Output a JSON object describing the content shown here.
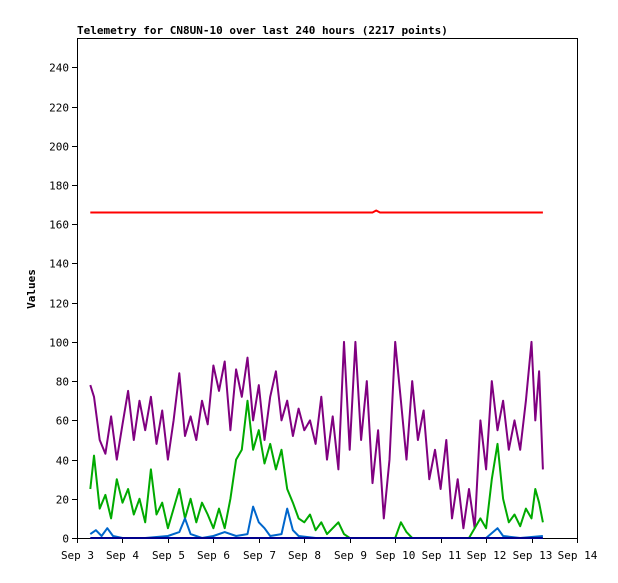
{
  "chart_data": {
    "type": "line",
    "title": "Telemetry for CN8UN-10 over last 240 hours (2217 points)",
    "xlabel": "",
    "ylabel": "Values",
    "xlim": [
      "2017-09-03",
      "2017-09-14"
    ],
    "ylim": [
      0,
      255
    ],
    "grid": false,
    "legend": "none",
    "x_ticks": [
      {
        "value": "2017-09-03",
        "label": "Sep 3"
      },
      {
        "value": "2017-09-04",
        "label": "Sep 4"
      },
      {
        "value": "2017-09-05",
        "label": "Sep 5"
      },
      {
        "value": "2017-09-06",
        "label": "Sep 6"
      },
      {
        "value": "2017-09-07",
        "label": "Sep 7"
      },
      {
        "value": "2017-09-08",
        "label": "Sep 8"
      },
      {
        "value": "2017-09-09",
        "label": "Sep 9"
      },
      {
        "value": "2017-09-10",
        "label": "Sep 10"
      },
      {
        "value": "2017-09-11",
        "label": "Sep 11"
      },
      {
        "value": "2017-09-12",
        "label": "Sep 12"
      },
      {
        "value": "2017-09-13",
        "label": "Sep 13"
      },
      {
        "value": "2017-09-14",
        "label": "Sep 14"
      }
    ],
    "y_ticks": [
      0,
      20,
      40,
      60,
      80,
      100,
      120,
      140,
      160,
      180,
      200,
      220,
      240
    ],
    "series": [
      {
        "color": "#ff0000",
        "points": [
          [
            "2017-09-03 07:00",
            166
          ],
          [
            "2017-09-06 00:00",
            166
          ],
          [
            "2017-09-08 00:00",
            166
          ],
          [
            "2017-09-09 12:00",
            166
          ],
          [
            "2017-09-09 14:00",
            167
          ],
          [
            "2017-09-09 16:00",
            166
          ],
          [
            "2017-09-11 00:00",
            166
          ],
          [
            "2017-09-13 06:00",
            166
          ]
        ]
      },
      {
        "color": "#800080",
        "points": [
          [
            "2017-09-03 07:00",
            78
          ],
          [
            "2017-09-03 09:00",
            72
          ],
          [
            "2017-09-03 12:00",
            50
          ],
          [
            "2017-09-03 15:00",
            43
          ],
          [
            "2017-09-03 18:00",
            62
          ],
          [
            "2017-09-03 21:00",
            40
          ],
          [
            "2017-09-04 00:00",
            58
          ],
          [
            "2017-09-04 03:00",
            75
          ],
          [
            "2017-09-04 06:00",
            50
          ],
          [
            "2017-09-04 09:00",
            70
          ],
          [
            "2017-09-04 12:00",
            55
          ],
          [
            "2017-09-04 15:00",
            72
          ],
          [
            "2017-09-04 18:00",
            48
          ],
          [
            "2017-09-04 21:00",
            65
          ],
          [
            "2017-09-05 00:00",
            40
          ],
          [
            "2017-09-05 03:00",
            60
          ],
          [
            "2017-09-05 06:00",
            84
          ],
          [
            "2017-09-05 09:00",
            52
          ],
          [
            "2017-09-05 12:00",
            62
          ],
          [
            "2017-09-05 15:00",
            50
          ],
          [
            "2017-09-05 18:00",
            70
          ],
          [
            "2017-09-05 21:00",
            58
          ],
          [
            "2017-09-06 00:00",
            88
          ],
          [
            "2017-09-06 03:00",
            75
          ],
          [
            "2017-09-06 06:00",
            90
          ],
          [
            "2017-09-06 09:00",
            55
          ],
          [
            "2017-09-06 12:00",
            86
          ],
          [
            "2017-09-06 15:00",
            72
          ],
          [
            "2017-09-06 18:00",
            92
          ],
          [
            "2017-09-06 21:00",
            60
          ],
          [
            "2017-09-07 00:00",
            78
          ],
          [
            "2017-09-07 03:00",
            50
          ],
          [
            "2017-09-07 06:00",
            72
          ],
          [
            "2017-09-07 09:00",
            85
          ],
          [
            "2017-09-07 12:00",
            60
          ],
          [
            "2017-09-07 15:00",
            70
          ],
          [
            "2017-09-07 18:00",
            52
          ],
          [
            "2017-09-07 21:00",
            66
          ],
          [
            "2017-09-08 00:00",
            55
          ],
          [
            "2017-09-08 03:00",
            60
          ],
          [
            "2017-09-08 06:00",
            48
          ],
          [
            "2017-09-08 09:00",
            72
          ],
          [
            "2017-09-08 12:00",
            40
          ],
          [
            "2017-09-08 15:00",
            62
          ],
          [
            "2017-09-08 18:00",
            35
          ],
          [
            "2017-09-08 21:00",
            100
          ],
          [
            "2017-09-09 00:00",
            45
          ],
          [
            "2017-09-09 03:00",
            100
          ],
          [
            "2017-09-09 06:00",
            50
          ],
          [
            "2017-09-09 09:00",
            80
          ],
          [
            "2017-09-09 12:00",
            28
          ],
          [
            "2017-09-09 15:00",
            55
          ],
          [
            "2017-09-09 18:00",
            10
          ],
          [
            "2017-09-09 21:00",
            40
          ],
          [
            "2017-09-10 00:00",
            100
          ],
          [
            "2017-09-10 03:00",
            70
          ],
          [
            "2017-09-10 06:00",
            40
          ],
          [
            "2017-09-10 09:00",
            80
          ],
          [
            "2017-09-10 12:00",
            50
          ],
          [
            "2017-09-10 15:00",
            65
          ],
          [
            "2017-09-10 18:00",
            30
          ],
          [
            "2017-09-10 21:00",
            45
          ],
          [
            "2017-09-11 00:00",
            25
          ],
          [
            "2017-09-11 03:00",
            50
          ],
          [
            "2017-09-11 06:00",
            10
          ],
          [
            "2017-09-11 09:00",
            30
          ],
          [
            "2017-09-11 12:00",
            5
          ],
          [
            "2017-09-11 15:00",
            25
          ],
          [
            "2017-09-11 18:00",
            5
          ],
          [
            "2017-09-11 21:00",
            60
          ],
          [
            "2017-09-12 00:00",
            35
          ],
          [
            "2017-09-12 03:00",
            80
          ],
          [
            "2017-09-12 06:00",
            55
          ],
          [
            "2017-09-12 09:00",
            70
          ],
          [
            "2017-09-12 12:00",
            45
          ],
          [
            "2017-09-12 15:00",
            60
          ],
          [
            "2017-09-12 18:00",
            45
          ],
          [
            "2017-09-12 21:00",
            70
          ],
          [
            "2017-09-13 00:00",
            100
          ],
          [
            "2017-09-13 02:00",
            60
          ],
          [
            "2017-09-13 04:00",
            85
          ],
          [
            "2017-09-13 06:00",
            35
          ]
        ]
      },
      {
        "color": "#00aa00",
        "points": [
          [
            "2017-09-03 07:00",
            25
          ],
          [
            "2017-09-03 09:00",
            42
          ],
          [
            "2017-09-03 12:00",
            15
          ],
          [
            "2017-09-03 15:00",
            22
          ],
          [
            "2017-09-03 18:00",
            10
          ],
          [
            "2017-09-03 21:00",
            30
          ],
          [
            "2017-09-04 00:00",
            18
          ],
          [
            "2017-09-04 03:00",
            25
          ],
          [
            "2017-09-04 06:00",
            12
          ],
          [
            "2017-09-04 09:00",
            20
          ],
          [
            "2017-09-04 12:00",
            8
          ],
          [
            "2017-09-04 15:00",
            35
          ],
          [
            "2017-09-04 18:00",
            12
          ],
          [
            "2017-09-04 21:00",
            18
          ],
          [
            "2017-09-05 00:00",
            5
          ],
          [
            "2017-09-05 03:00",
            15
          ],
          [
            "2017-09-05 06:00",
            25
          ],
          [
            "2017-09-05 09:00",
            10
          ],
          [
            "2017-09-05 12:00",
            20
          ],
          [
            "2017-09-05 15:00",
            8
          ],
          [
            "2017-09-05 18:00",
            18
          ],
          [
            "2017-09-05 21:00",
            12
          ],
          [
            "2017-09-06 00:00",
            5
          ],
          [
            "2017-09-06 03:00",
            15
          ],
          [
            "2017-09-06 06:00",
            5
          ],
          [
            "2017-09-06 09:00",
            20
          ],
          [
            "2017-09-06 12:00",
            40
          ],
          [
            "2017-09-06 15:00",
            45
          ],
          [
            "2017-09-06 18:00",
            70
          ],
          [
            "2017-09-06 21:00",
            45
          ],
          [
            "2017-09-07 00:00",
            55
          ],
          [
            "2017-09-07 03:00",
            38
          ],
          [
            "2017-09-07 06:00",
            48
          ],
          [
            "2017-09-07 09:00",
            35
          ],
          [
            "2017-09-07 12:00",
            45
          ],
          [
            "2017-09-07 15:00",
            25
          ],
          [
            "2017-09-07 18:00",
            18
          ],
          [
            "2017-09-07 21:00",
            10
          ],
          [
            "2017-09-08 00:00",
            8
          ],
          [
            "2017-09-08 03:00",
            12
          ],
          [
            "2017-09-08 06:00",
            4
          ],
          [
            "2017-09-08 09:00",
            8
          ],
          [
            "2017-09-08 12:00",
            2
          ],
          [
            "2017-09-08 15:00",
            5
          ],
          [
            "2017-09-08 18:00",
            8
          ],
          [
            "2017-09-08 21:00",
            2
          ],
          [
            "2017-09-09 00:00",
            0
          ],
          [
            "2017-09-09 06:00",
            0
          ],
          [
            "2017-09-09 12:00",
            0
          ],
          [
            "2017-09-09 18:00",
            0
          ],
          [
            "2017-09-10 00:00",
            0
          ],
          [
            "2017-09-10 03:00",
            8
          ],
          [
            "2017-09-10 06:00",
            3
          ],
          [
            "2017-09-10 09:00",
            0
          ],
          [
            "2017-09-10 15:00",
            0
          ],
          [
            "2017-09-10 21:00",
            0
          ],
          [
            "2017-09-11 03:00",
            0
          ],
          [
            "2017-09-11 09:00",
            0
          ],
          [
            "2017-09-11 15:00",
            0
          ],
          [
            "2017-09-11 21:00",
            10
          ],
          [
            "2017-09-12 00:00",
            5
          ],
          [
            "2017-09-12 03:00",
            30
          ],
          [
            "2017-09-12 06:00",
            48
          ],
          [
            "2017-09-12 09:00",
            20
          ],
          [
            "2017-09-12 12:00",
            8
          ],
          [
            "2017-09-12 15:00",
            12
          ],
          [
            "2017-09-12 18:00",
            6
          ],
          [
            "2017-09-12 21:00",
            15
          ],
          [
            "2017-09-13 00:00",
            10
          ],
          [
            "2017-09-13 02:00",
            25
          ],
          [
            "2017-09-13 04:00",
            18
          ],
          [
            "2017-09-13 06:00",
            8
          ]
        ]
      },
      {
        "color": "#0066cc",
        "points": [
          [
            "2017-09-03 07:00",
            2
          ],
          [
            "2017-09-03 10:00",
            4
          ],
          [
            "2017-09-03 13:00",
            1
          ],
          [
            "2017-09-03 16:00",
            5
          ],
          [
            "2017-09-03 19:00",
            1
          ],
          [
            "2017-09-04 00:00",
            0
          ],
          [
            "2017-09-04 12:00",
            0
          ],
          [
            "2017-09-05 00:00",
            1
          ],
          [
            "2017-09-05 06:00",
            3
          ],
          [
            "2017-09-05 09:00",
            10
          ],
          [
            "2017-09-05 12:00",
            2
          ],
          [
            "2017-09-05 18:00",
            0
          ],
          [
            "2017-09-06 00:00",
            1
          ],
          [
            "2017-09-06 06:00",
            3
          ],
          [
            "2017-09-06 12:00",
            1
          ],
          [
            "2017-09-06 18:00",
            2
          ],
          [
            "2017-09-06 21:00",
            16
          ],
          [
            "2017-09-07 00:00",
            8
          ],
          [
            "2017-09-07 03:00",
            5
          ],
          [
            "2017-09-07 06:00",
            1
          ],
          [
            "2017-09-07 12:00",
            2
          ],
          [
            "2017-09-07 15:00",
            15
          ],
          [
            "2017-09-07 18:00",
            4
          ],
          [
            "2017-09-07 21:00",
            1
          ],
          [
            "2017-09-08 06:00",
            0
          ],
          [
            "2017-09-09 00:00",
            0
          ],
          [
            "2017-09-10 00:00",
            0
          ],
          [
            "2017-09-11 00:00",
            0
          ],
          [
            "2017-09-12 00:00",
            0
          ],
          [
            "2017-09-12 06:00",
            5
          ],
          [
            "2017-09-12 09:00",
            1
          ],
          [
            "2017-09-12 18:00",
            0
          ],
          [
            "2017-09-13 06:00",
            1
          ]
        ]
      },
      {
        "color": "#00008b",
        "points": [
          [
            "2017-09-03 07:00",
            0
          ],
          [
            "2017-09-06 00:00",
            0
          ],
          [
            "2017-09-09 00:00",
            0
          ],
          [
            "2017-09-11 00:00",
            0
          ],
          [
            "2017-09-13 06:00",
            0
          ]
        ]
      }
    ]
  }
}
